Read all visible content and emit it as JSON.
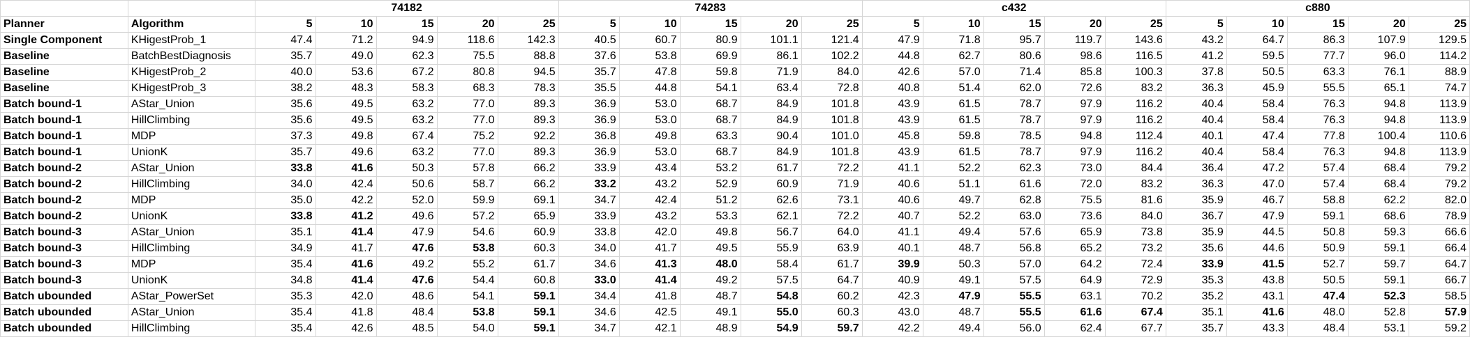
{
  "headers": {
    "planner": "Planner",
    "algorithm": "Algorithm",
    "groups": [
      "74182",
      "74283",
      "c432",
      "c880"
    ],
    "sizes": [
      "5",
      "10",
      "15",
      "20",
      "25"
    ]
  },
  "rows": [
    {
      "planner": "Single Component",
      "algorithm": "KHigestProb_1",
      "sep": true,
      "values": [
        "47.4",
        "71.2",
        "94.9",
        "118.6",
        "142.3",
        "40.5",
        "60.7",
        "80.9",
        "101.1",
        "121.4",
        "47.9",
        "71.8",
        "95.7",
        "119.7",
        "143.6",
        "43.2",
        "64.7",
        "86.3",
        "107.9",
        "129.5"
      ],
      "bold": []
    },
    {
      "planner": "Baseline",
      "algorithm": "BatchBestDiagnosis",
      "sep": true,
      "values": [
        "35.7",
        "49.0",
        "62.3",
        "75.5",
        "88.8",
        "37.6",
        "53.8",
        "69.9",
        "86.1",
        "102.2",
        "44.8",
        "62.7",
        "80.6",
        "98.6",
        "116.5",
        "41.2",
        "59.5",
        "77.7",
        "96.0",
        "114.2"
      ],
      "bold": []
    },
    {
      "planner": "Baseline",
      "algorithm": "KHigestProb_2",
      "sep": false,
      "values": [
        "40.0",
        "53.6",
        "67.2",
        "80.8",
        "94.5",
        "35.7",
        "47.8",
        "59.8",
        "71.9",
        "84.0",
        "42.6",
        "57.0",
        "71.4",
        "85.8",
        "100.3",
        "37.8",
        "50.5",
        "63.3",
        "76.1",
        "88.9"
      ],
      "bold": []
    },
    {
      "planner": "Baseline",
      "algorithm": "KHigestProb_3",
      "sep": false,
      "values": [
        "38.2",
        "48.3",
        "58.3",
        "68.3",
        "78.3",
        "35.5",
        "44.8",
        "54.1",
        "63.4",
        "72.8",
        "40.8",
        "51.4",
        "62.0",
        "72.6",
        "83.2",
        "36.3",
        "45.9",
        "55.5",
        "65.1",
        "74.7"
      ],
      "bold": []
    },
    {
      "planner": "Batch bound-1",
      "algorithm": "AStar_Union",
      "sep": true,
      "values": [
        "35.6",
        "49.5",
        "63.2",
        "77.0",
        "89.3",
        "36.9",
        "53.0",
        "68.7",
        "84.9",
        "101.8",
        "43.9",
        "61.5",
        "78.7",
        "97.9",
        "116.2",
        "40.4",
        "58.4",
        "76.3",
        "94.8",
        "113.9"
      ],
      "bold": []
    },
    {
      "planner": "Batch bound-1",
      "algorithm": "HillClimbing",
      "sep": false,
      "values": [
        "35.6",
        "49.5",
        "63.2",
        "77.0",
        "89.3",
        "36.9",
        "53.0",
        "68.7",
        "84.9",
        "101.8",
        "43.9",
        "61.5",
        "78.7",
        "97.9",
        "116.2",
        "40.4",
        "58.4",
        "76.3",
        "94.8",
        "113.9"
      ],
      "bold": []
    },
    {
      "planner": "Batch bound-1",
      "algorithm": "MDP",
      "sep": false,
      "values": [
        "37.3",
        "49.8",
        "67.4",
        "75.2",
        "92.2",
        "36.8",
        "49.8",
        "63.3",
        "90.4",
        "101.0",
        "45.8",
        "59.8",
        "78.5",
        "94.8",
        "112.4",
        "40.1",
        "47.4",
        "77.8",
        "100.4",
        "110.6"
      ],
      "bold": []
    },
    {
      "planner": "Batch bound-1",
      "algorithm": "UnionK",
      "sep": false,
      "values": [
        "35.7",
        "49.6",
        "63.2",
        "77.0",
        "89.3",
        "36.9",
        "53.0",
        "68.7",
        "84.9",
        "101.8",
        "43.9",
        "61.5",
        "78.7",
        "97.9",
        "116.2",
        "40.4",
        "58.4",
        "76.3",
        "94.8",
        "113.9"
      ],
      "bold": []
    },
    {
      "planner": "Batch bound-2",
      "algorithm": "AStar_Union",
      "sep": true,
      "values": [
        "33.8",
        "41.6",
        "50.3",
        "57.8",
        "66.2",
        "33.9",
        "43.4",
        "53.2",
        "61.7",
        "72.2",
        "41.1",
        "52.2",
        "62.3",
        "73.0",
        "84.4",
        "36.4",
        "47.2",
        "57.4",
        "68.4",
        "79.2"
      ],
      "bold": [
        0,
        1
      ]
    },
    {
      "planner": "Batch bound-2",
      "algorithm": "HillClimbing",
      "sep": false,
      "values": [
        "34.0",
        "42.4",
        "50.6",
        "58.7",
        "66.2",
        "33.2",
        "43.2",
        "52.9",
        "60.9",
        "71.9",
        "40.6",
        "51.1",
        "61.6",
        "72.0",
        "83.2",
        "36.3",
        "47.0",
        "57.4",
        "68.4",
        "79.2"
      ],
      "bold": [
        5
      ]
    },
    {
      "planner": "Batch bound-2",
      "algorithm": "MDP",
      "sep": false,
      "values": [
        "35.0",
        "42.2",
        "52.0",
        "59.9",
        "69.1",
        "34.7",
        "42.4",
        "51.2",
        "62.6",
        "73.1",
        "40.6",
        "49.7",
        "62.8",
        "75.5",
        "81.6",
        "35.9",
        "46.7",
        "58.8",
        "62.2",
        "82.0"
      ],
      "bold": []
    },
    {
      "planner": "Batch bound-2",
      "algorithm": "UnionK",
      "sep": false,
      "values": [
        "33.8",
        "41.2",
        "49.6",
        "57.2",
        "65.9",
        "33.9",
        "43.2",
        "53.3",
        "62.1",
        "72.2",
        "40.7",
        "52.2",
        "63.0",
        "73.6",
        "84.0",
        "36.7",
        "47.9",
        "59.1",
        "68.6",
        "78.9"
      ],
      "bold": [
        0,
        1
      ]
    },
    {
      "planner": "Batch bound-3",
      "algorithm": "AStar_Union",
      "sep": true,
      "values": [
        "35.1",
        "41.4",
        "47.9",
        "54.6",
        "60.9",
        "33.8",
        "42.0",
        "49.8",
        "56.7",
        "64.0",
        "41.1",
        "49.4",
        "57.6",
        "65.9",
        "73.8",
        "35.9",
        "44.5",
        "50.8",
        "59.3",
        "66.6"
      ],
      "bold": [
        1
      ]
    },
    {
      "planner": "Batch bound-3",
      "algorithm": "HillClimbing",
      "sep": false,
      "values": [
        "34.9",
        "41.7",
        "47.6",
        "53.8",
        "60.3",
        "34.0",
        "41.7",
        "49.5",
        "55.9",
        "63.9",
        "40.1",
        "48.7",
        "56.8",
        "65.2",
        "73.2",
        "35.6",
        "44.6",
        "50.9",
        "59.1",
        "66.4"
      ],
      "bold": [
        2,
        3
      ]
    },
    {
      "planner": "Batch bound-3",
      "algorithm": "MDP",
      "sep": false,
      "values": [
        "35.4",
        "41.6",
        "49.2",
        "55.2",
        "61.7",
        "34.6",
        "41.3",
        "48.0",
        "58.4",
        "61.7",
        "39.9",
        "50.3",
        "57.0",
        "64.2",
        "72.4",
        "33.9",
        "41.5",
        "52.7",
        "59.7",
        "64.7"
      ],
      "bold": [
        1,
        6,
        7,
        10,
        15,
        16
      ]
    },
    {
      "planner": "Batch bound-3",
      "algorithm": "UnionK",
      "sep": false,
      "values": [
        "34.8",
        "41.4",
        "47.6",
        "54.4",
        "60.8",
        "33.0",
        "41.4",
        "49.2",
        "57.5",
        "64.7",
        "40.9",
        "49.1",
        "57.5",
        "64.9",
        "72.9",
        "35.3",
        "43.8",
        "50.5",
        "59.1",
        "66.7"
      ],
      "bold": [
        1,
        2,
        5,
        6
      ]
    },
    {
      "planner": "Batch ubounded",
      "algorithm": "AStar_PowerSet",
      "sep": true,
      "values": [
        "35.3",
        "42.0",
        "48.6",
        "54.1",
        "59.1",
        "34.4",
        "41.8",
        "48.7",
        "54.8",
        "60.2",
        "42.3",
        "47.9",
        "55.5",
        "63.1",
        "70.2",
        "35.2",
        "43.1",
        "47.4",
        "52.3",
        "58.5"
      ],
      "bold": [
        4,
        8,
        11,
        12,
        17,
        18
      ]
    },
    {
      "planner": "Batch ubounded",
      "algorithm": "AStar_Union",
      "sep": false,
      "values": [
        "35.4",
        "41.8",
        "48.4",
        "53.8",
        "59.1",
        "34.6",
        "42.5",
        "49.1",
        "55.0",
        "60.3",
        "43.0",
        "48.7",
        "55.5",
        "61.6",
        "67.4",
        "35.1",
        "41.6",
        "48.0",
        "52.8",
        "57.9"
      ],
      "bold": [
        3,
        4,
        8,
        12,
        13,
        14,
        16,
        19
      ]
    },
    {
      "planner": "Batch ubounded",
      "algorithm": "HillClimbing",
      "sep": false,
      "values": [
        "35.4",
        "42.6",
        "48.5",
        "54.0",
        "59.1",
        "34.7",
        "42.1",
        "48.9",
        "54.9",
        "59.7",
        "42.2",
        "49.4",
        "56.0",
        "62.4",
        "67.7",
        "35.7",
        "43.3",
        "48.4",
        "53.1",
        "59.2"
      ],
      "bold": [
        4,
        8,
        9
      ]
    }
  ]
}
